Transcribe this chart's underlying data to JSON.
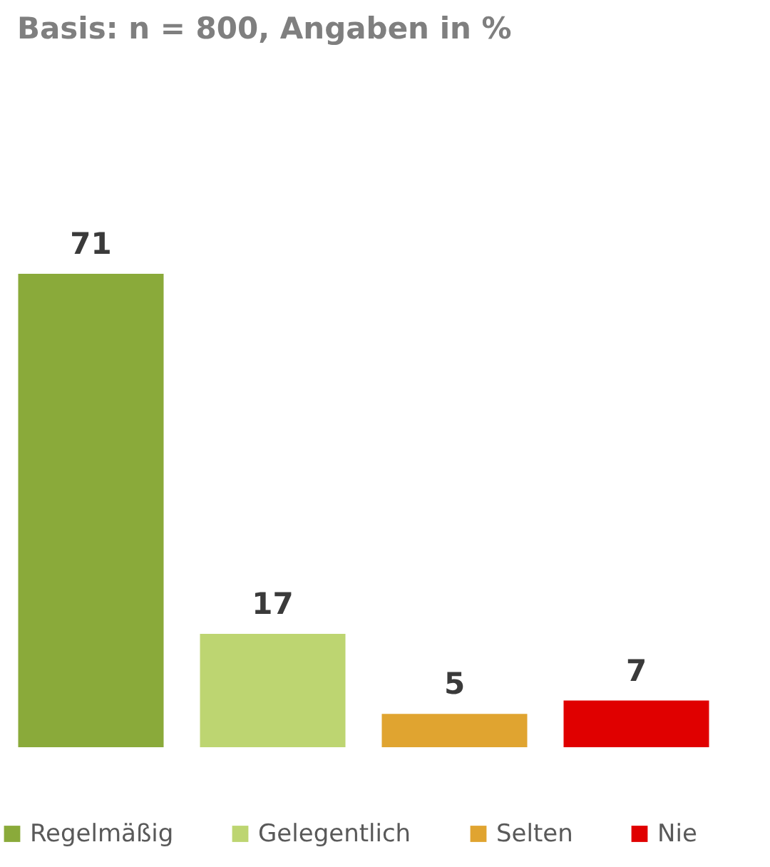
{
  "chart_data": {
    "type": "bar",
    "title": "Basis: n = 800, Angaben in %",
    "categories": [
      null
    ],
    "series": [
      {
        "name": "Regelmäßig",
        "color": "#8aaa3a",
        "values": [
          71
        ]
      },
      {
        "name": "Gelegentlich",
        "color": "#bdd571",
        "values": [
          17
        ]
      },
      {
        "name": "Selten",
        "color": "#e0a430",
        "values": [
          5
        ]
      },
      {
        "name": "Nie",
        "color": "#e00000",
        "values": [
          7
        ]
      }
    ],
    "data_labels": true,
    "legend": "bottom"
  }
}
